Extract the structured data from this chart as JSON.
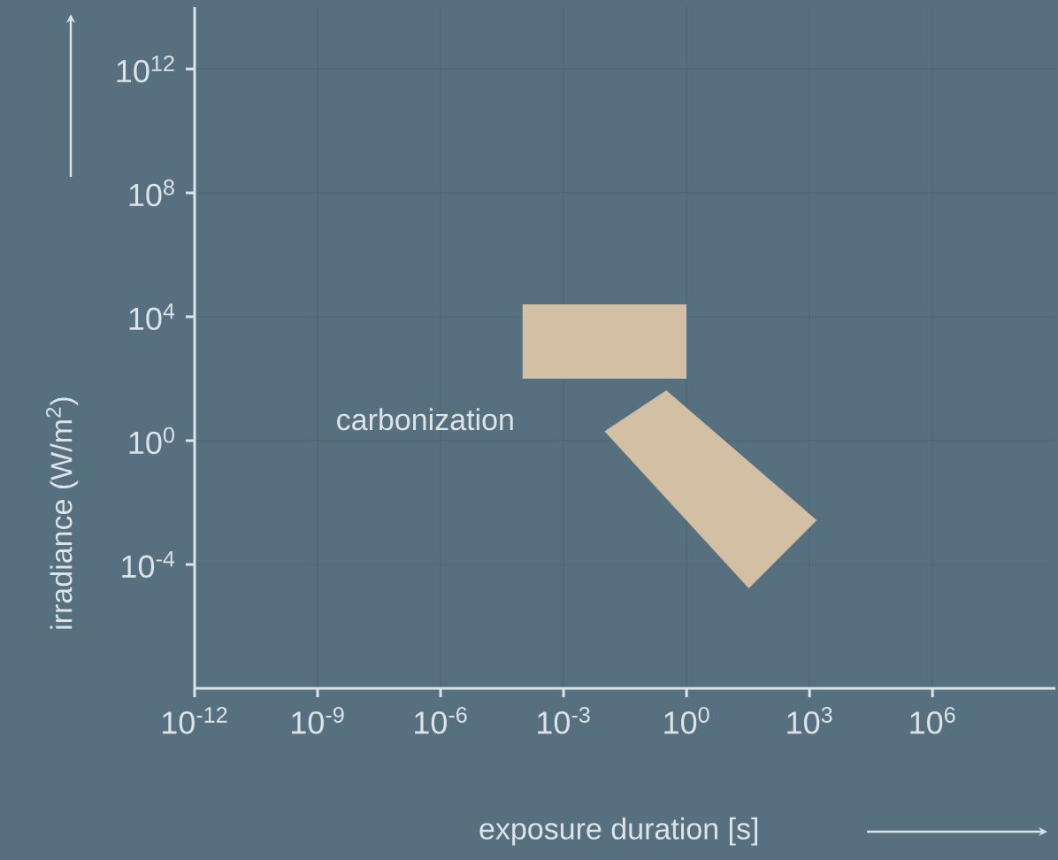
{
  "chart_data": {
    "type": "area",
    "log": "xy",
    "grid": true,
    "xlabel": "exposure duration  [s]",
    "ylabel": "irradiance  (W/m$^{2}$)",
    "xlim": [
      1e-12,
      1000000000.0
    ],
    "ylim": [
      1e-08,
      100000000000000.0
    ],
    "xticks": [
      {
        "value": 1e-12,
        "label": "10$^{-12}$"
      },
      {
        "value": 1e-09,
        "label": "10$^{-9}$"
      },
      {
        "value": 1e-06,
        "label": "10$^{-6}$"
      },
      {
        "value": 0.001,
        "label": "10$^{-3}$"
      },
      {
        "value": 1,
        "label": "10$^{0}$"
      },
      {
        "value": 1000.0,
        "label": "10$^{3}$"
      },
      {
        "value": 1000000.0,
        "label": "10$^{6}$"
      }
    ],
    "yticks": [
      {
        "value": 0.0001,
        "label": "10$^{-4}$"
      },
      {
        "value": 1,
        "label": "10$^{0}$"
      },
      {
        "value": 10000.0,
        "label": "10$^{4}$"
      },
      {
        "value": 100000000.0,
        "label": "10$^{8}$"
      },
      {
        "value": 1000000000000.0,
        "label": "10$^{12}$"
      }
    ],
    "annotations": [
      "carbonization"
    ],
    "series": [
      {
        "color": "#d3bfa3",
        "x": [
          0.0001,
          1,
          1,
          0.0001
        ],
        "values": [
          100,
          100,
          25000,
          25000
        ]
      },
      {
        "color": "#d3bfa3",
        "x": [
          0.01,
          0.32,
          1500,
          33
        ],
        "values": [
          2,
          42,
          0.0027,
          1.7e-05
        ]
      }
    ]
  }
}
